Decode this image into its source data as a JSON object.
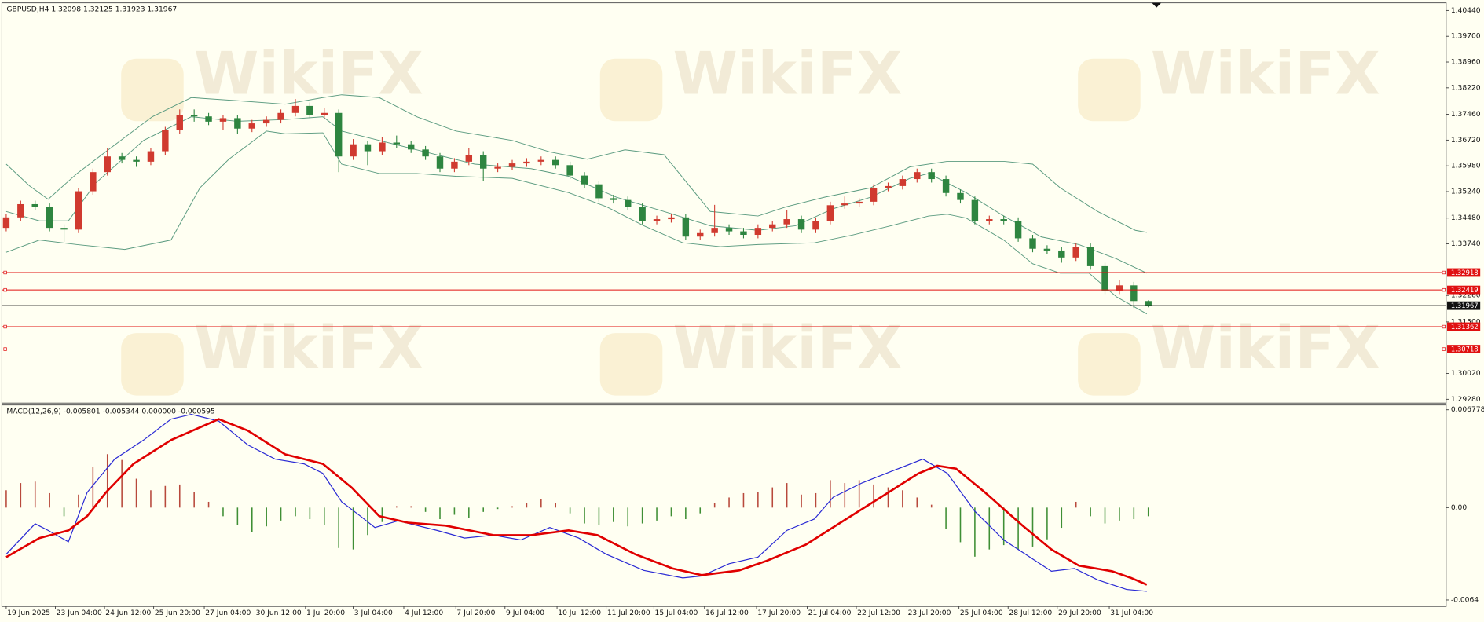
{
  "chart_data": [
    {
      "type": "candlestick",
      "title": "GBPUSD,H4  1.32098 1.32125 1.31923 1.31967",
      "watermark": "WikiFX",
      "up_color": "#d03a2f",
      "down_color": "#2e8540",
      "open": [
        1.342,
        1.345,
        1.3488,
        1.348,
        1.342,
        1.3415,
        1.3525,
        1.358,
        1.3625,
        1.3615,
        1.361,
        1.364,
        1.37,
        1.3745,
        1.374,
        1.3725,
        1.3735,
        1.3705,
        1.372,
        1.373,
        1.375,
        1.377,
        1.3745,
        1.375,
        1.3625,
        1.366,
        1.364,
        1.3665,
        1.366,
        1.3645,
        1.3625,
        1.359,
        1.361,
        1.363,
        1.359,
        1.3595,
        1.3605,
        1.361,
        1.3615,
        1.36,
        1.357,
        1.3545,
        1.3505,
        1.35,
        1.348,
        1.344,
        1.3445,
        1.345,
        1.3395,
        1.3405,
        1.342,
        1.341,
        1.34,
        1.342,
        1.343,
        1.3445,
        1.3415,
        1.344,
        1.3485,
        1.349,
        1.3495,
        1.3535,
        1.354,
        1.356,
        1.358,
        1.356,
        1.352,
        1.35,
        1.344,
        1.3445,
        1.344,
        1.339,
        1.336,
        1.3355,
        1.3335,
        1.3365,
        1.331,
        1.324,
        1.3255,
        1.321
      ],
      "high": [
        1.346,
        1.3498,
        1.3498,
        1.349,
        1.343,
        1.3535,
        1.359,
        1.365,
        1.3635,
        1.3625,
        1.365,
        1.371,
        1.376,
        1.376,
        1.375,
        1.3745,
        1.3745,
        1.373,
        1.374,
        1.376,
        1.379,
        1.378,
        1.3765,
        1.376,
        1.3675,
        1.367,
        1.368,
        1.3685,
        1.367,
        1.3655,
        1.3635,
        1.362,
        1.365,
        1.364,
        1.3605,
        1.3615,
        1.362,
        1.3625,
        1.3625,
        1.361,
        1.358,
        1.3555,
        1.3515,
        1.351,
        1.349,
        1.3455,
        1.346,
        1.346,
        1.3415,
        1.3486,
        1.343,
        1.342,
        1.343,
        1.344,
        1.347,
        1.3455,
        1.345,
        1.3495,
        1.351,
        1.3505,
        1.3545,
        1.355,
        1.357,
        1.359,
        1.359,
        1.357,
        1.353,
        1.351,
        1.3455,
        1.3455,
        1.345,
        1.34,
        1.337,
        1.3365,
        1.3375,
        1.3375,
        1.332,
        1.327,
        1.3265,
        1.3212
      ],
      "low": [
        1.341,
        1.344,
        1.347,
        1.341,
        1.338,
        1.3405,
        1.3515,
        1.357,
        1.3605,
        1.3595,
        1.36,
        1.363,
        1.369,
        1.3725,
        1.3715,
        1.37,
        1.369,
        1.3695,
        1.371,
        1.372,
        1.374,
        1.3735,
        1.3735,
        1.358,
        1.3615,
        1.36,
        1.363,
        1.365,
        1.3635,
        1.3615,
        1.358,
        1.358,
        1.36,
        1.3555,
        1.358,
        1.3585,
        1.3595,
        1.36,
        1.359,
        1.356,
        1.3535,
        1.3495,
        1.349,
        1.347,
        1.343,
        1.343,
        1.3435,
        1.3385,
        1.3385,
        1.3395,
        1.34,
        1.339,
        1.339,
        1.341,
        1.342,
        1.3405,
        1.3405,
        1.343,
        1.3475,
        1.348,
        1.3485,
        1.3525,
        1.353,
        1.355,
        1.355,
        1.351,
        1.349,
        1.343,
        1.343,
        1.343,
        1.338,
        1.335,
        1.3345,
        1.332,
        1.3325,
        1.33,
        1.323,
        1.323,
        1.319,
        1.3192
      ],
      "close": [
        1.345,
        1.3488,
        1.348,
        1.342,
        1.3415,
        1.3525,
        1.358,
        1.3625,
        1.3615,
        1.361,
        1.364,
        1.37,
        1.3745,
        1.374,
        1.3725,
        1.3735,
        1.3705,
        1.372,
        1.373,
        1.375,
        1.377,
        1.3745,
        1.375,
        1.3625,
        1.366,
        1.364,
        1.3665,
        1.366,
        1.3645,
        1.3625,
        1.359,
        1.361,
        1.363,
        1.359,
        1.3595,
        1.3605,
        1.361,
        1.3615,
        1.36,
        1.357,
        1.3545,
        1.3505,
        1.35,
        1.348,
        1.344,
        1.3445,
        1.345,
        1.3395,
        1.3405,
        1.342,
        1.341,
        1.34,
        1.342,
        1.343,
        1.3445,
        1.3415,
        1.344,
        1.3485,
        1.349,
        1.3495,
        1.3535,
        1.354,
        1.356,
        1.358,
        1.356,
        1.352,
        1.35,
        1.344,
        1.3445,
        1.344,
        1.339,
        1.336,
        1.3355,
        1.3335,
        1.3365,
        1.331,
        1.324,
        1.3255,
        1.321,
        1.3197
      ],
      "lines": [
        {
          "color": "#5b9b80",
          "x": [
            0,
            1.6,
            2.9,
            4.9,
            7.5,
            10.1,
            12.8,
            16.0,
            19.3,
            21.9,
            23.2,
            25.8,
            28.4,
            31.1,
            35.0,
            37.6,
            40.2,
            42.8,
            45.5,
            48.7,
            52.0,
            54.0,
            56.6,
            59.8,
            62.5,
            65.1,
            69.0,
            71.0,
            72.9,
            75.5,
            78.1,
            78.9
          ],
          "values": [
            1.3603,
            1.3541,
            1.3502,
            1.3576,
            1.3658,
            1.3739,
            1.3794,
            1.3785,
            1.3775,
            1.3794,
            1.3802,
            1.3794,
            1.3739,
            1.3698,
            1.3671,
            1.3638,
            1.3617,
            1.3644,
            1.363,
            1.3467,
            1.3454,
            1.3481,
            1.3508,
            1.3535,
            1.3595,
            1.3611,
            1.3611,
            1.3603,
            1.3535,
            1.3467,
            1.3413,
            1.3407
          ]
        },
        {
          "color": "#5b9b80",
          "x": [
            0,
            2.3,
            4.3,
            6.2,
            9.5,
            12.8,
            16.0,
            19.3,
            21.9,
            23.2,
            25.8,
            28.4,
            32.4,
            36.3,
            38.9,
            42.2,
            45.5,
            48.7,
            52.0,
            54.6,
            57.2,
            59.8,
            62.5,
            63.8,
            66.4,
            69.0,
            71.6,
            74.2,
            76.8,
            78.9
          ],
          "values": [
            1.3467,
            1.344,
            1.344,
            1.3549,
            1.3671,
            1.3739,
            1.3726,
            1.3731,
            1.3739,
            1.3698,
            1.3671,
            1.3644,
            1.3603,
            1.359,
            1.3568,
            1.3508,
            1.3467,
            1.3426,
            1.3413,
            1.3426,
            1.3475,
            1.3508,
            1.3562,
            1.3576,
            1.3521,
            1.3454,
            1.3394,
            1.3372,
            1.3331,
            1.329
          ]
        },
        {
          "color": "#5b9b80",
          "x": [
            0,
            2.3,
            4.9,
            8.2,
            11.4,
            13.4,
            15.4,
            18.0,
            19.3,
            21.9,
            23.2,
            25.8,
            28.4,
            31.1,
            35.0,
            38.9,
            41.5,
            44.1,
            46.8,
            49.4,
            52.0,
            55.9,
            58.5,
            61.2,
            63.8,
            65.1,
            66.4,
            69.0,
            71.0,
            72.9,
            74.9,
            76.8,
            78.9
          ],
          "values": [
            1.335,
            1.3385,
            1.3372,
            1.3358,
            1.3385,
            1.3535,
            1.3617,
            1.3698,
            1.369,
            1.3693,
            1.3603,
            1.3576,
            1.3576,
            1.3568,
            1.3562,
            1.3521,
            1.3481,
            1.3426,
            1.3377,
            1.3366,
            1.3372,
            1.3377,
            1.3399,
            1.3426,
            1.3454,
            1.3459,
            1.3448,
            1.3385,
            1.3317,
            1.329,
            1.329,
            1.3222,
            1.3173
          ]
        }
      ],
      "levels": [
        1.32918,
        1.32419,
        1.31362,
        1.30718
      ],
      "level_color": "#e01010",
      "last_price": 1.31967,
      "xlim": [
        -0.3,
        99.6
      ],
      "ylim": [
        1.2917,
        1.4066
      ],
      "yticks": [
        {
          "value": 1.4044,
          "label": "1.40440"
        },
        {
          "value": 1.397,
          "label": "1.39700"
        },
        {
          "value": 1.3896,
          "label": "1.38960"
        },
        {
          "value": 1.3822,
          "label": "1.38220"
        },
        {
          "value": 1.3746,
          "label": "1.37460"
        },
        {
          "value": 1.3672,
          "label": "1.36720"
        },
        {
          "value": 1.3598,
          "label": "1.35980"
        },
        {
          "value": 1.3524,
          "label": "1.35240"
        },
        {
          "value": 1.3448,
          "label": "1.34480"
        },
        {
          "value": 1.3374,
          "label": "1.33740"
        },
        {
          "value": 1.3226,
          "label": "1.32260"
        },
        {
          "value": 1.315,
          "label": "1.31500"
        },
        {
          "value": 1.3002,
          "label": "1.30020"
        },
        {
          "value": 1.2928,
          "label": "1.29280"
        }
      ]
    },
    {
      "type": "macd",
      "title": "MACD(12,26,9) -0.005801 -0.005344 0.000000 -0.000595",
      "pos_color": "#b8493c",
      "neg_color": "#3f8f35",
      "histogram": [
        0.0012,
        0.0017,
        0.0018,
        0.001,
        -0.0006,
        0.0009,
        0.0028,
        0.0037,
        0.0033,
        0.002,
        0.0012,
        0.0015,
        0.0016,
        0.0011,
        0.0004,
        -0.0006,
        -0.0012,
        -0.0017,
        -0.0013,
        -0.0009,
        -0.0006,
        -0.0008,
        -0.0012,
        -0.0028,
        -0.0029,
        -0.0019,
        -0.001,
        0.0001,
        0.0001,
        -0.0003,
        -0.0008,
        -0.0005,
        -0.0007,
        -0.0003,
        -0.0001,
        0.0001,
        0.0003,
        0.0006,
        0.0003,
        -0.0004,
        -0.0011,
        -0.0012,
        -0.001,
        -0.0013,
        -0.0011,
        -0.0009,
        -0.0006,
        -0.0008,
        -0.0004,
        0.0003,
        0.0007,
        0.001,
        0.0011,
        0.0014,
        0.0017,
        0.0009,
        0.001,
        0.0019,
        0.0017,
        0.0019,
        0.0016,
        0.0014,
        0.0012,
        0.0007,
        0.0002,
        -0.0015,
        -0.0024,
        -0.0034,
        -0.0029,
        -0.0026,
        -0.0029,
        -0.0027,
        -0.0022,
        -0.0014,
        0.0004,
        -0.0006,
        -0.0011,
        -0.0009,
        -0.0008,
        -0.0006
      ],
      "lines": [
        {
          "color": "#2a2ad4",
          "width": 1,
          "x": [
            0,
            2.0,
            2.9,
            4.3,
            5.6,
            7.5,
            9.5,
            11.4,
            12.8,
            14.7,
            16.7,
            18.6,
            20.6,
            21.9,
            23.2,
            24.5,
            25.5,
            27.1,
            29.8,
            31.7,
            33.7,
            35.6,
            37.6,
            39.6,
            41.5,
            44.1,
            46.8,
            48.1,
            50.0,
            52.0,
            54.0,
            55.9,
            57.2,
            59.2,
            61.2,
            63.4,
            65.1,
            67.0,
            69.0,
            71.0,
            72.3,
            73.9,
            75.5,
            77.5,
            78.9
          ],
          "values": [
            -0.00323,
            -0.00112,
            -0.00158,
            -0.00237,
            0.00105,
            0.00336,
            0.00468,
            0.00613,
            0.00646,
            0.00599,
            0.00435,
            0.00336,
            0.00303,
            0.00237,
            0.0004,
            -0.00059,
            -0.00138,
            -0.00092,
            -0.00158,
            -0.00211,
            -0.00191,
            -0.00224,
            -0.00138,
            -0.00211,
            -0.00323,
            -0.00435,
            -0.00487,
            -0.00474,
            -0.00389,
            -0.00343,
            -0.00158,
            -0.00079,
            0.00072,
            0.00171,
            0.0025,
            0.00336,
            0.00237,
            -0.00026,
            -0.00224,
            -0.00356,
            -0.00441,
            -0.00422,
            -0.00501,
            -0.00567,
            -0.0058
          ]
        },
        {
          "color": "#e00000",
          "width": 2.2,
          "x": [
            0,
            2.3,
            4.3,
            5.6,
            6.9,
            8.8,
            11.4,
            14.7,
            16.7,
            19.3,
            21.9,
            23.9,
            25.8,
            27.8,
            30.4,
            33.7,
            36.3,
            38.9,
            40.9,
            43.5,
            46.1,
            48.1,
            50.7,
            52.6,
            55.3,
            57.9,
            60.5,
            63.1,
            64.4,
            65.7,
            67.7,
            70.3,
            72.3,
            74.2,
            76.5,
            77.8,
            78.9
          ],
          "values": [
            -0.00343,
            -0.00211,
            -0.00158,
            -0.00059,
            0.00105,
            0.00303,
            0.00468,
            0.00613,
            0.00534,
            0.00369,
            0.00303,
            0.00138,
            -0.00059,
            -0.00105,
            -0.00125,
            -0.00191,
            -0.00191,
            -0.00158,
            -0.00191,
            -0.00323,
            -0.00422,
            -0.00468,
            -0.00435,
            -0.00369,
            -0.00257,
            -0.00092,
            0.00072,
            0.00237,
            0.0029,
            0.0027,
            0.00105,
            -0.00125,
            -0.0029,
            -0.00402,
            -0.00441,
            -0.00487,
            -0.00534
          ]
        }
      ],
      "xlim": [
        -0.3,
        99.6
      ],
      "ylim": [
        -0.00685,
        0.00711
      ],
      "yticks": [
        0.006778,
        {
          "value": 0,
          "label": "0.00"
        },
        -0.0064
      ],
      "xticks": [
        {
          "value": 0,
          "label": "19 Jun 2025"
        },
        {
          "value": 3.4,
          "label": "23 Jun 04:00"
        },
        {
          "value": 6.8,
          "label": "24 Jun 12:00"
        },
        {
          "value": 10.2,
          "label": "25 Jun 20:00"
        },
        {
          "value": 13.7,
          "label": "27 Jun 04:00"
        },
        {
          "value": 17.2,
          "label": "30 Jun 12:00"
        },
        {
          "value": 20.7,
          "label": "1 Jul 20:00"
        },
        {
          "value": 24.0,
          "label": "3 Jul 04:00"
        },
        {
          "value": 27.5,
          "label": "4 Jul 12:00"
        },
        {
          "value": 31.1,
          "label": "7 Jul 20:00"
        },
        {
          "value": 34.5,
          "label": "9 Jul 04:00"
        },
        {
          "value": 38.1,
          "label": "10 Jul 12:00"
        },
        {
          "value": 41.5,
          "label": "11 Jul 20:00"
        },
        {
          "value": 44.8,
          "label": "15 Jul 04:00"
        },
        {
          "value": 48.3,
          "label": "16 Jul 12:00"
        },
        {
          "value": 51.9,
          "label": "17 Jul 20:00"
        },
        {
          "value": 55.4,
          "label": "21 Jul 04:00"
        },
        {
          "value": 58.8,
          "label": "22 Jul 12:00"
        },
        {
          "value": 62.3,
          "label": "23 Jul 20:00"
        },
        {
          "value": 65.9,
          "label": "25 Jul 04:00"
        },
        {
          "value": 69.3,
          "label": "28 Jul 12:00"
        },
        {
          "value": 72.7,
          "label": "29 Jul 20:00"
        },
        {
          "value": 76.3,
          "label": "31 Jul 04:00"
        }
      ]
    }
  ]
}
